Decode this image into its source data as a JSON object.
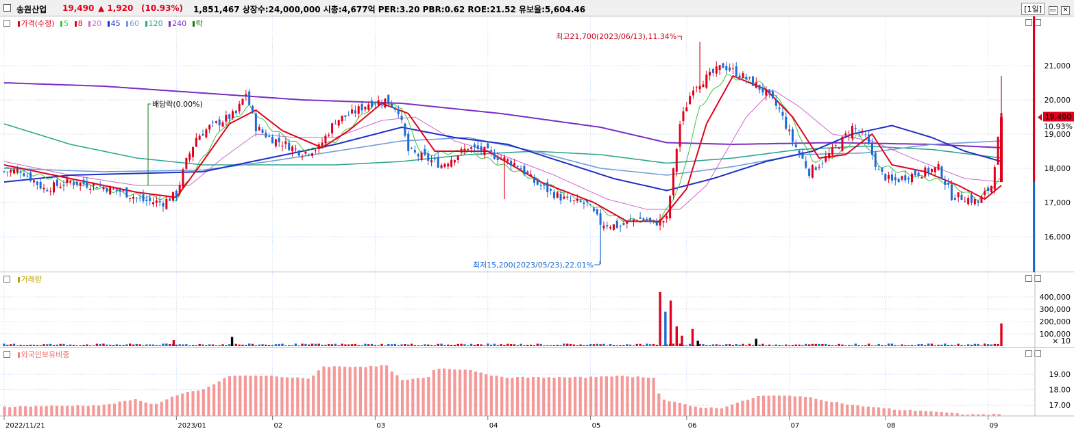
{
  "header": {
    "name": "송원산업",
    "price": "19,490",
    "change": "▲ 1,920",
    "change_pct": "(10.93%)",
    "stats": "1,851,467  상장수:24,000,000 시총:4,677억  PER:3.20  PBR:0.62  ROE:21.52  유보율:5,604.46",
    "period": "[1일]",
    "up_color": "#e0001b",
    "down_color": "#1c6ad6"
  },
  "legend": {
    "price": [
      "가격(수정)",
      "5",
      "8",
      "20",
      "45",
      "60",
      "120",
      "240",
      "락"
    ],
    "volume": "거래량",
    "foreign": "외국인보유비중"
  },
  "annotations": {
    "high": "최고21,700(2023/06/13),11.34%",
    "low": "최저15,200(2023/05/23),22.01%",
    "dividend": "배당락(0.00%)",
    "last_price": "19,490",
    "last_pct": "10.93%"
  },
  "chart_data": [
    {
      "type": "candlestick",
      "series_name": "가격(수정)",
      "ylim": [
        15000,
        22000
      ],
      "y_ticks": [
        "16,000",
        "17,000",
        "18,000",
        "19,000",
        "20,000",
        "21,000"
      ],
      "x_ticks": [
        "2022/11/21",
        "2023/01",
        "02",
        "03",
        "04",
        "05",
        "06",
        "07",
        "08",
        "09"
      ],
      "moving_averages": [
        {
          "name": "5",
          "color": "#3cc23c"
        },
        {
          "name": "8",
          "color": "#e0001b"
        },
        {
          "name": "20",
          "color": "#cc66cc"
        },
        {
          "name": "45",
          "color": "#1c2fc4"
        },
        {
          "name": "60",
          "color": "#6f9bd6"
        },
        {
          "name": "120",
          "color": "#2ea58c"
        },
        {
          "name": "240",
          "color": "#7a2ec4"
        }
      ],
      "close_path": [
        [
          0,
          17900
        ],
        [
          5,
          17950
        ],
        [
          12,
          17400
        ],
        [
          20,
          17600
        ],
        [
          28,
          17500
        ],
        [
          36,
          17300
        ],
        [
          42,
          17050
        ],
        [
          48,
          17000
        ],
        [
          52,
          17250
        ],
        [
          55,
          18200
        ],
        [
          58,
          18900
        ],
        [
          62,
          19200
        ],
        [
          66,
          19400
        ],
        [
          70,
          19600
        ],
        [
          73,
          20200
        ],
        [
          76,
          19200
        ],
        [
          80,
          18900
        ],
        [
          85,
          18700
        ],
        [
          90,
          18450
        ],
        [
          95,
          18600
        ],
        [
          100,
          19400
        ],
        [
          105,
          19600
        ],
        [
          110,
          19900
        ],
        [
          115,
          20000
        ],
        [
          119,
          19700
        ],
        [
          122,
          18500
        ],
        [
          127,
          18300
        ],
        [
          132,
          18100
        ],
        [
          136,
          18350
        ],
        [
          140,
          18600
        ],
        [
          145,
          18500
        ],
        [
          150,
          18300
        ],
        [
          155,
          18100
        ],
        [
          160,
          17600
        ],
        [
          165,
          17300
        ],
        [
          170,
          17050
        ],
        [
          176,
          16950
        ],
        [
          180,
          16400
        ],
        [
          186,
          16300
        ],
        [
          191,
          16550
        ],
        [
          196,
          16400
        ],
        [
          200,
          16500
        ],
        [
          204,
          19300
        ],
        [
          208,
          20400
        ],
        [
          213,
          20700
        ],
        [
          217,
          21000
        ],
        [
          221,
          20800
        ],
        [
          226,
          20500
        ],
        [
          230,
          20200
        ],
        [
          234,
          19700
        ],
        [
          238,
          18800
        ],
        [
          243,
          17900
        ],
        [
          247,
          18200
        ],
        [
          252,
          18700
        ],
        [
          256,
          19200
        ],
        [
          260,
          18900
        ],
        [
          264,
          17900
        ],
        [
          268,
          17600
        ],
        [
          273,
          17800
        ],
        [
          278,
          17900
        ],
        [
          282,
          18000
        ],
        [
          286,
          17200
        ],
        [
          290,
          17150
        ],
        [
          294,
          17000
        ],
        [
          298,
          17500
        ],
        [
          301,
          19490
        ]
      ],
      "ma_paths": {
        "5": [
          [
            0,
            18000
          ],
          [
            20,
            17600
          ],
          [
            40,
            17200
          ],
          [
            52,
            17100
          ],
          [
            58,
            18000
          ],
          [
            66,
            19200
          ],
          [
            74,
            19800
          ],
          [
            80,
            19200
          ],
          [
            92,
            18500
          ],
          [
            100,
            18800
          ],
          [
            112,
            19900
          ],
          [
            120,
            19800
          ],
          [
            126,
            18400
          ],
          [
            140,
            18500
          ],
          [
            160,
            17700
          ],
          [
            176,
            17000
          ],
          [
            186,
            16500
          ],
          [
            198,
            16450
          ],
          [
            204,
            17500
          ],
          [
            210,
            19800
          ],
          [
            218,
            20700
          ],
          [
            228,
            20500
          ],
          [
            236,
            19800
          ],
          [
            244,
            18200
          ],
          [
            252,
            18400
          ],
          [
            258,
            19000
          ],
          [
            264,
            18100
          ],
          [
            274,
            17800
          ],
          [
            284,
            17600
          ],
          [
            294,
            17100
          ],
          [
            301,
            17700
          ]
        ],
        "8": [
          [
            0,
            18100
          ],
          [
            20,
            17700
          ],
          [
            40,
            17300
          ],
          [
            52,
            17150
          ],
          [
            60,
            18200
          ],
          [
            68,
            19300
          ],
          [
            76,
            19700
          ],
          [
            84,
            19100
          ],
          [
            96,
            18600
          ],
          [
            104,
            19100
          ],
          [
            114,
            19900
          ],
          [
            122,
            19600
          ],
          [
            130,
            18500
          ],
          [
            146,
            18500
          ],
          [
            162,
            17600
          ],
          [
            178,
            17000
          ],
          [
            188,
            16450
          ],
          [
            198,
            16450
          ],
          [
            206,
            17400
          ],
          [
            212,
            19300
          ],
          [
            220,
            20700
          ],
          [
            230,
            20300
          ],
          [
            238,
            19500
          ],
          [
            246,
            18300
          ],
          [
            254,
            18400
          ],
          [
            262,
            19000
          ],
          [
            268,
            18100
          ],
          [
            278,
            17900
          ],
          [
            288,
            17500
          ],
          [
            296,
            17100
          ],
          [
            301,
            17500
          ]
        ],
        "20": [
          [
            0,
            18200
          ],
          [
            20,
            17800
          ],
          [
            40,
            17500
          ],
          [
            56,
            17500
          ],
          [
            66,
            18300
          ],
          [
            76,
            19000
          ],
          [
            88,
            18900
          ],
          [
            100,
            18900
          ],
          [
            114,
            19400
          ],
          [
            124,
            19500
          ],
          [
            136,
            18800
          ],
          [
            150,
            18400
          ],
          [
            166,
            17800
          ],
          [
            182,
            17100
          ],
          [
            194,
            16800
          ],
          [
            204,
            16800
          ],
          [
            212,
            17500
          ],
          [
            224,
            19500
          ],
          [
            232,
            20300
          ],
          [
            240,
            19800
          ],
          [
            250,
            19000
          ],
          [
            262,
            18800
          ],
          [
            274,
            18300
          ],
          [
            290,
            17700
          ],
          [
            301,
            17600
          ]
        ],
        "45": [
          [
            0,
            17600
          ],
          [
            20,
            17800
          ],
          [
            40,
            17850
          ],
          [
            60,
            17900
          ],
          [
            80,
            18300
          ],
          [
            100,
            18700
          ],
          [
            112,
            19000
          ],
          [
            120,
            19200
          ],
          [
            136,
            18900
          ],
          [
            152,
            18700
          ],
          [
            168,
            18200
          ],
          [
            184,
            17700
          ],
          [
            200,
            17350
          ],
          [
            214,
            17700
          ],
          [
            230,
            18200
          ],
          [
            244,
            18500
          ],
          [
            256,
            19000
          ],
          [
            268,
            19250
          ],
          [
            280,
            18900
          ],
          [
            290,
            18500
          ],
          [
            301,
            18200
          ]
        ],
        "60": [
          [
            0,
            18000
          ],
          [
            30,
            17900
          ],
          [
            60,
            17950
          ],
          [
            80,
            18200
          ],
          [
            100,
            18500
          ],
          [
            120,
            18800
          ],
          [
            140,
            18900
          ],
          [
            160,
            18500
          ],
          [
            180,
            18000
          ],
          [
            200,
            17800
          ],
          [
            220,
            18050
          ],
          [
            240,
            18400
          ],
          [
            260,
            18450
          ],
          [
            280,
            18700
          ],
          [
            301,
            18800
          ]
        ],
        "120": [
          [
            0,
            19300
          ],
          [
            20,
            18700
          ],
          [
            40,
            18300
          ],
          [
            60,
            18100
          ],
          [
            80,
            18100
          ],
          [
            100,
            18100
          ],
          [
            120,
            18200
          ],
          [
            140,
            18400
          ],
          [
            160,
            18500
          ],
          [
            180,
            18400
          ],
          [
            200,
            18150
          ],
          [
            220,
            18300
          ],
          [
            240,
            18550
          ],
          [
            260,
            18650
          ],
          [
            280,
            18550
          ],
          [
            301,
            18300
          ]
        ],
        "240": [
          [
            0,
            20500
          ],
          [
            30,
            20400
          ],
          [
            60,
            20200
          ],
          [
            90,
            20000
          ],
          [
            120,
            19900
          ],
          [
            150,
            19600
          ],
          [
            180,
            19200
          ],
          [
            200,
            18750
          ],
          [
            220,
            18700
          ],
          [
            250,
            18750
          ],
          [
            280,
            18700
          ],
          [
            301,
            18600
          ]
        ]
      },
      "spikes": [
        {
          "x": 180,
          "high": 16800,
          "low": 15200
        },
        {
          "x": 210,
          "high": 21700,
          "low": 20200
        },
        {
          "x": 151,
          "high": 18400,
          "low": 17100
        },
        {
          "x": 301,
          "high": 20700,
          "low": 17600
        }
      ]
    },
    {
      "type": "bar",
      "series_name": "거래량",
      "ylim": [
        0,
        500000
      ],
      "y_ticks": [
        "100,000",
        "200,000",
        "300,000",
        "400,000"
      ],
      "unit": "× 10",
      "baseline": 15000,
      "big_bars": [
        {
          "x": 198,
          "value": 440000,
          "up": true
        },
        {
          "x": 199.6,
          "value": 280000,
          "up": false
        },
        {
          "x": 201.2,
          "value": 370000,
          "up": true
        },
        {
          "x": 203,
          "value": 160000,
          "up": true
        },
        {
          "x": 204.6,
          "value": 85000,
          "up": true
        },
        {
          "x": 207.8,
          "value": 140000,
          "up": true
        },
        {
          "x": 209.4,
          "value": 45000,
          "up": false
        },
        {
          "x": 68.8,
          "value": 75000,
          "up": false
        },
        {
          "x": 51.2,
          "value": 50000,
          "up": true
        },
        {
          "x": 227,
          "value": 60000,
          "up": false
        },
        {
          "x": 301,
          "value": 185000,
          "up": true
        }
      ]
    },
    {
      "type": "bar",
      "series_name": "외국인보유비중",
      "ylim": [
        16.3,
        20.2
      ],
      "y_ticks": [
        "17.00",
        "18.00",
        "19.00"
      ],
      "profile": [
        [
          0,
          16.9
        ],
        [
          30,
          17.0
        ],
        [
          40,
          17.4
        ],
        [
          45,
          17.0
        ],
        [
          50,
          17.5
        ],
        [
          55,
          17.8
        ],
        [
          60,
          18.0
        ],
        [
          68,
          18.9
        ],
        [
          80,
          18.9
        ],
        [
          92,
          18.7
        ],
        [
          96,
          19.5
        ],
        [
          112,
          19.5
        ],
        [
          115,
          19.6
        ],
        [
          120,
          18.6
        ],
        [
          128,
          18.8
        ],
        [
          130,
          19.4
        ],
        [
          140,
          19.3
        ],
        [
          150,
          18.8
        ],
        [
          176,
          18.8
        ],
        [
          182,
          18.9
        ],
        [
          196,
          18.8
        ],
        [
          198,
          17.4
        ],
        [
          208,
          16.9
        ],
        [
          216,
          16.8
        ],
        [
          228,
          17.6
        ],
        [
          236,
          17.6
        ],
        [
          240,
          17.6
        ],
        [
          256,
          17.0
        ],
        [
          270,
          16.7
        ],
        [
          280,
          16.6
        ],
        [
          290,
          16.4
        ],
        [
          301,
          16.4
        ]
      ]
    }
  ]
}
